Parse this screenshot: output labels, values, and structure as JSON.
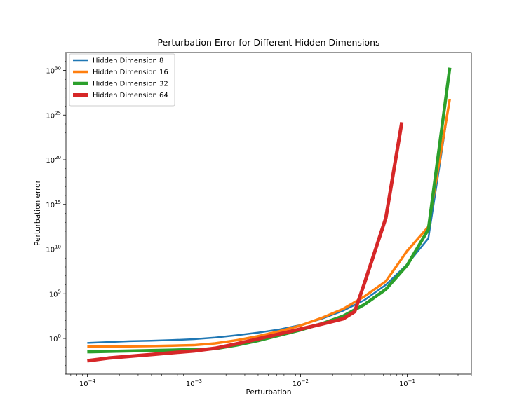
{
  "chart_data": {
    "type": "line",
    "title": "Perturbation Error for Different Hidden Dimensions",
    "xlabel": "Perturbation",
    "ylabel": "Perturbation error",
    "xscale": "log",
    "yscale": "log",
    "xlim": [
      6.31e-05,
      0.4
    ],
    "ylim": [
      0.0001,
      1e+32
    ],
    "xticks": [
      {
        "value": 0.0001,
        "base": "10",
        "exp": "−4"
      },
      {
        "value": 0.001,
        "base": "10",
        "exp": "−3"
      },
      {
        "value": 0.01,
        "base": "10",
        "exp": "−2"
      },
      {
        "value": 0.1,
        "base": "10",
        "exp": "−1"
      }
    ],
    "yticks": [
      {
        "value": 1,
        "base": "10",
        "exp": "0"
      },
      {
        "value": 100000.0,
        "base": "10",
        "exp": "5"
      },
      {
        "value": 10000000000.0,
        "base": "10",
        "exp": "10"
      },
      {
        "value": 1000000000000000.0,
        "base": "10",
        "exp": "15"
      },
      {
        "value": 1e+20,
        "base": "10",
        "exp": "20"
      },
      {
        "value": 1e+25,
        "base": "10",
        "exp": "25"
      },
      {
        "value": 1e+30,
        "base": "10",
        "exp": "30"
      }
    ],
    "grid": false,
    "legend_position": "top-left",
    "series": [
      {
        "name": "Hidden Dimension 8",
        "color": "#1f77b4",
        "width": 2.5,
        "x": [
          0.0001,
          0.000158,
          0.000251,
          0.000398,
          0.000631,
          0.001,
          0.00158,
          0.00251,
          0.00398,
          0.00631,
          0.01,
          0.0158,
          0.0251,
          0.0398,
          0.0631,
          0.1,
          0.158,
          0.251
        ],
        "log10_y": [
          -0.5,
          -0.4,
          -0.3,
          -0.25,
          -0.18,
          -0.08,
          0.1,
          0.35,
          0.65,
          1.0,
          1.5,
          2.2,
          3.1,
          4.3,
          6.0,
          8.3,
          11.2,
          26.8
        ]
      },
      {
        "name": "Hidden Dimension 16",
        "color": "#ff7f0e",
        "width": 3.5,
        "x": [
          0.0001,
          0.000158,
          0.000251,
          0.000398,
          0.000631,
          0.001,
          0.00158,
          0.00251,
          0.00398,
          0.00631,
          0.01,
          0.0158,
          0.0251,
          0.0398,
          0.0631,
          0.1,
          0.158,
          0.251
        ],
        "log10_y": [
          -0.9,
          -0.9,
          -0.88,
          -0.85,
          -0.8,
          -0.75,
          -0.55,
          -0.2,
          0.25,
          0.8,
          1.45,
          2.3,
          3.3,
          4.7,
          6.4,
          9.8,
          12.5,
          26.8
        ]
      },
      {
        "name": "Hidden Dimension 32",
        "color": "#2ca02c",
        "width": 4.5,
        "x": [
          0.0001,
          0.000158,
          0.000251,
          0.000398,
          0.000631,
          0.001,
          0.00158,
          0.00251,
          0.00398,
          0.00631,
          0.01,
          0.0158,
          0.0251,
          0.0398,
          0.0631,
          0.1,
          0.158,
          0.251
        ],
        "log10_y": [
          -1.5,
          -1.45,
          -1.4,
          -1.35,
          -1.3,
          -1.25,
          -1.15,
          -0.75,
          -0.25,
          0.35,
          0.95,
          1.65,
          2.5,
          3.8,
          5.5,
          8.2,
          12.2,
          30.3
        ]
      },
      {
        "name": "Hidden Dimension 64",
        "color": "#d62728",
        "width": 5,
        "x": [
          0.0001,
          0.000158,
          0.000251,
          0.000398,
          0.000631,
          0.001,
          0.00158,
          0.00251,
          0.00398,
          0.00631,
          0.01,
          0.0158,
          0.0251,
          0.0322,
          0.0398,
          0.0631,
          0.0891
        ],
        "log10_y": [
          -2.5,
          -2.2,
          -2.0,
          -1.8,
          -1.6,
          -1.4,
          -1.1,
          -0.6,
          -0.05,
          0.5,
          1.05,
          1.6,
          2.2,
          3.0,
          6.2,
          13.5,
          24.2
        ]
      }
    ]
  }
}
